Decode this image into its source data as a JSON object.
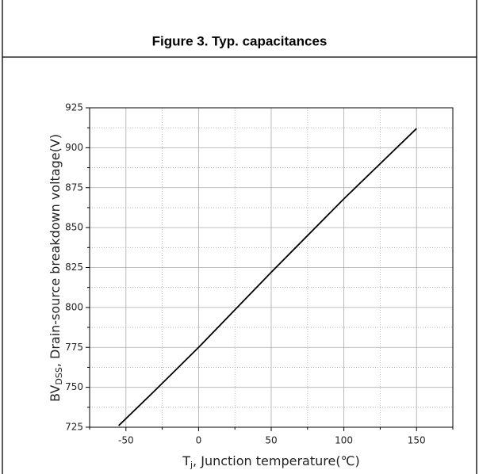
{
  "header": {
    "title": "Figure 3. Typ. capacitances"
  },
  "chart_data": {
    "type": "line",
    "xlabel_parts": [
      "T",
      "j",
      ", Junction temperature(℃)"
    ],
    "ylabel_parts": [
      "BV",
      "DSS",
      ", Drain-source breakdown voltage(V)"
    ],
    "x": [
      -55,
      -30,
      0,
      50,
      100,
      150
    ],
    "series": [
      {
        "color": "#000000",
        "values": [
          726,
          748,
          775,
          822,
          868,
          912
        ]
      }
    ],
    "xlim": [
      -75,
      175
    ],
    "xticks": [
      -50,
      0,
      50,
      100,
      150
    ],
    "ylim": [
      725,
      925
    ],
    "yticks": [
      725,
      750,
      775,
      800,
      825,
      850,
      875,
      900,
      925
    ],
    "grid": true
  }
}
